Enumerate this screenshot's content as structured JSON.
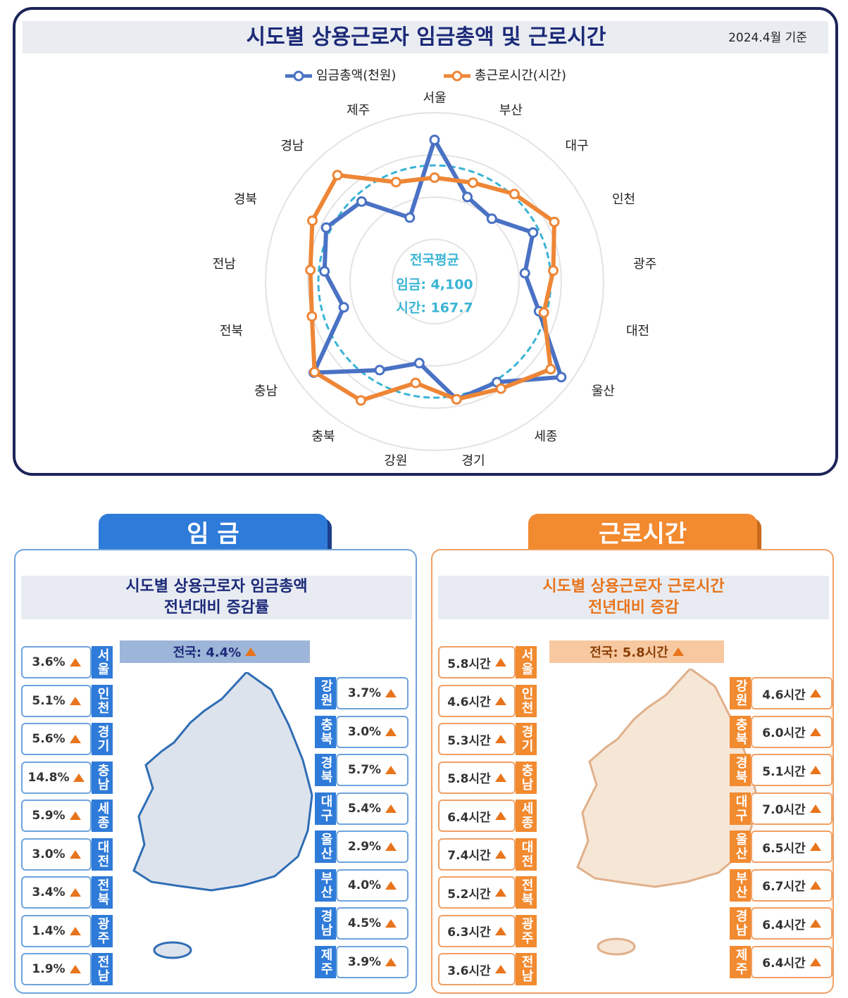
{
  "chart_data": {
    "type": "radar",
    "title": "시도별 상용근로자 임금총액 및 근로시간",
    "subtitle": "2024.4월 기준",
    "categories": [
      "서울",
      "부산",
      "대구",
      "인천",
      "광주",
      "대전",
      "울산",
      "세종",
      "경기",
      "강원",
      "충북",
      "충남",
      "전북",
      "전남",
      "경북",
      "경남",
      "제주"
    ],
    "annotation_title": "전국평균",
    "series": [
      {
        "name": "임금총액(천원)",
        "color": "#4a72c4",
        "average": {
          "value": 4100,
          "label": "임금: 4,100"
        },
        "values": [
          5000,
          3200,
          3000,
          3880,
          3200,
          3830,
          5600,
          4180,
          4230,
          2930,
          3680,
          5340,
          3330,
          3900,
          4270,
          3820,
          2420
        ]
      },
      {
        "name": "총근로시간(시간)",
        "color": "#ee8636",
        "average": {
          "value": 167.7,
          "label": "시간: 167.7"
        },
        "values": [
          150,
          153,
          171,
          193,
          172,
          164,
          210,
          182,
          173,
          149,
          202,
          217,
          184,
          180,
          197,
          208,
          154
        ]
      }
    ],
    "average_color": "#3ab4d4"
  },
  "panels": [
    {
      "tab": "임 금",
      "subtitle": [
        "시도별 상용근로자 임금총액",
        "전년대비 증감률"
      ],
      "national": "전국: 4.4%",
      "left": [
        {
          "region": "서울",
          "value": "3.6%"
        },
        {
          "region": "인천",
          "value": "5.1%"
        },
        {
          "region": "경기",
          "value": "5.6%"
        },
        {
          "region": "충남",
          "value": "14.8%"
        },
        {
          "region": "세종",
          "value": "5.9%"
        },
        {
          "region": "대전",
          "value": "3.0%"
        },
        {
          "region": "전북",
          "value": "3.4%"
        },
        {
          "region": "광주",
          "value": "1.4%"
        },
        {
          "region": "전남",
          "value": "1.9%"
        }
      ],
      "right": [
        {
          "region": "강원",
          "value": "3.7%"
        },
        {
          "region": "충북",
          "value": "3.0%"
        },
        {
          "region": "경북",
          "value": "5.7%"
        },
        {
          "region": "대구",
          "value": "5.4%"
        },
        {
          "region": "울산",
          "value": "2.9%"
        },
        {
          "region": "부산",
          "value": "4.0%"
        },
        {
          "region": "경남",
          "value": "4.5%"
        },
        {
          "region": "제주",
          "value": "3.9%"
        }
      ]
    },
    {
      "tab": "근로시간",
      "subtitle": [
        "시도별 상용근로자 근로시간",
        "전년대비 증감"
      ],
      "national": "전국: 5.8시간",
      "left": [
        {
          "region": "서울",
          "value": "5.8시간"
        },
        {
          "region": "인천",
          "value": "4.6시간"
        },
        {
          "region": "경기",
          "value": "5.3시간"
        },
        {
          "region": "충남",
          "value": "5.8시간"
        },
        {
          "region": "세종",
          "value": "6.4시간"
        },
        {
          "region": "대전",
          "value": "7.4시간"
        },
        {
          "region": "전북",
          "value": "5.2시간"
        },
        {
          "region": "광주",
          "value": "6.3시간"
        },
        {
          "region": "전남",
          "value": "3.6시간"
        }
      ],
      "right": [
        {
          "region": "강원",
          "value": "4.6시간"
        },
        {
          "region": "충북",
          "value": "6.0시간"
        },
        {
          "region": "경북",
          "value": "5.1시간"
        },
        {
          "region": "대구",
          "value": "7.0시간"
        },
        {
          "region": "울산",
          "value": "6.5시간"
        },
        {
          "region": "부산",
          "value": "6.7시간"
        },
        {
          "region": "경남",
          "value": "6.4시간"
        },
        {
          "region": "제주",
          "value": "6.4시간"
        }
      ]
    }
  ]
}
